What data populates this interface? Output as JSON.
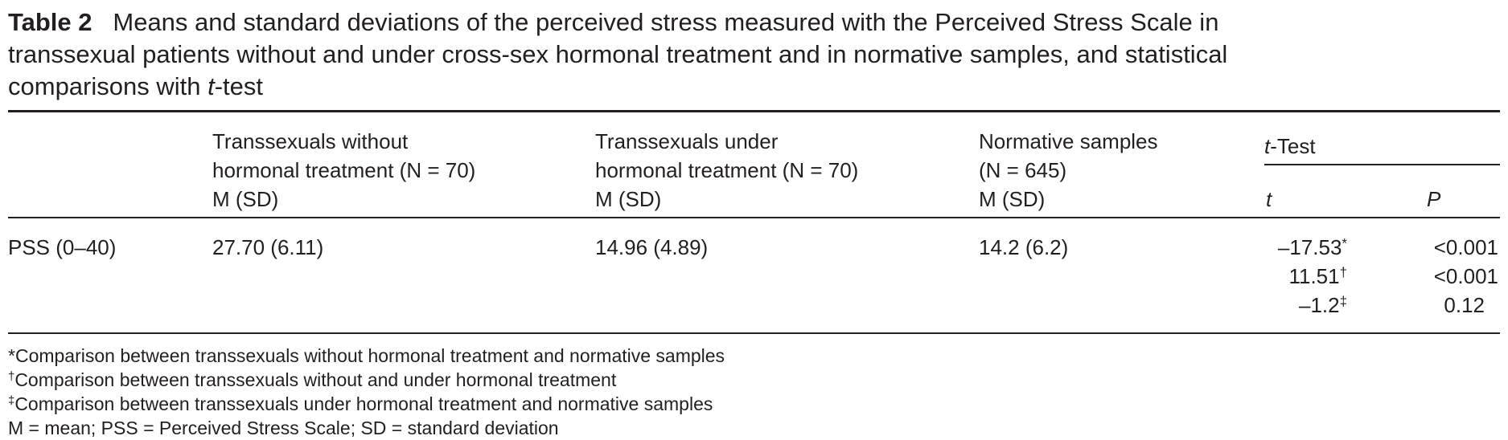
{
  "caption": {
    "label": "Table 2",
    "lines": [
      [
        "Means and standard deviations of the perceived stress measured with the Perceived Stress Scale in"
      ],
      [
        "transsexual patients without and under cross-sex hormonal treatment and in normative samples, and statistical"
      ],
      [
        "comparisons with ",
        "t",
        "-test"
      ]
    ]
  },
  "table": {
    "header": {
      "columns": [
        [
          "Transsexuals without",
          "hormonal treatment (N = 70)",
          "M (SD)"
        ],
        [
          "Transsexuals under",
          "hormonal treatment (N = 70)",
          "M (SD)"
        ],
        [
          "Normative samples",
          "(N = 645)",
          "M (SD)"
        ]
      ],
      "group": [
        "t",
        "-Test"
      ],
      "subcolumns": [
        "t",
        "P"
      ]
    },
    "row": {
      "label": "PSS (0–40)",
      "cells": [
        "27.70 (6.11)",
        "14.96 (4.89)",
        "14.2 (6.2)"
      ],
      "t": [
        {
          "value": "–17.53",
          "mark": "*"
        },
        {
          "value": "11.51",
          "mark": "†"
        },
        {
          "value": "–1.2",
          "mark": "‡"
        }
      ],
      "P": [
        "<0.001",
        "<0.001",
        "0.12"
      ]
    }
  },
  "footnotes": [
    {
      "mark": "*",
      "text": "Comparison between transsexuals without hormonal treatment and normative samples"
    },
    {
      "mark": "†",
      "text": "Comparison between transsexuals without and under hormonal treatment"
    },
    {
      "mark": "‡",
      "text": "Comparison between transsexuals under hormonal treatment and normative samples"
    }
  ],
  "abbreviations": "M = mean; PSS = Perceived Stress Scale; SD = standard deviation"
}
